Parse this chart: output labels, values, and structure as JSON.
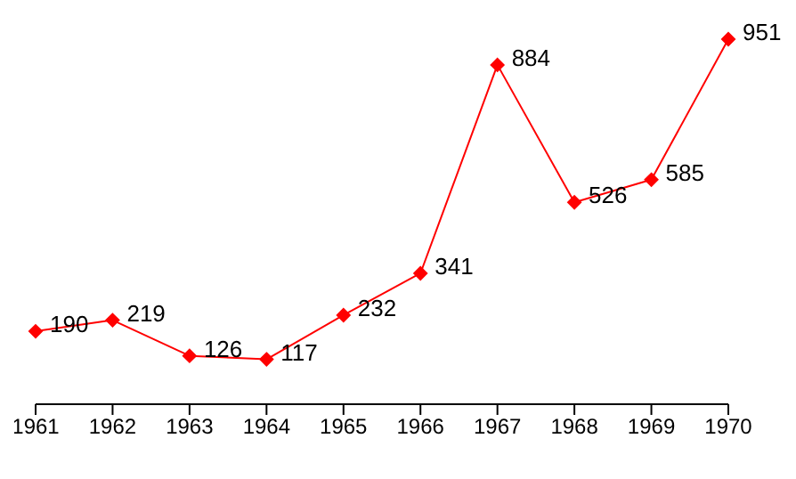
{
  "chart_data": {
    "type": "line",
    "categories": [
      "1961",
      "1962",
      "1963",
      "1964",
      "1965",
      "1966",
      "1967",
      "1968",
      "1969",
      "1970"
    ],
    "series": [
      {
        "color": "#ff0000",
        "values": [
          190,
          219,
          126,
          117,
          232,
          341,
          884,
          526,
          585,
          951
        ]
      }
    ],
    "data_labels": true,
    "marker": "diamond"
  }
}
